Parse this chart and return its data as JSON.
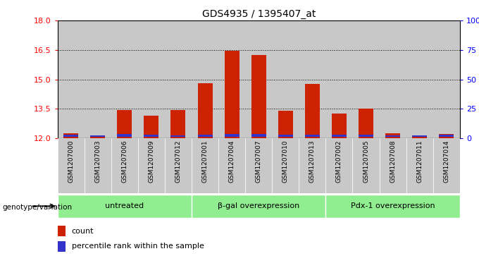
{
  "title": "GDS4935 / 1395407_at",
  "samples": [
    "GSM1207000",
    "GSM1207003",
    "GSM1207006",
    "GSM1207009",
    "GSM1207012",
    "GSM1207001",
    "GSM1207004",
    "GSM1207007",
    "GSM1207010",
    "GSM1207013",
    "GSM1207002",
    "GSM1207005",
    "GSM1207008",
    "GSM1207011",
    "GSM1207014"
  ],
  "red_values": [
    12.25,
    12.15,
    13.45,
    13.15,
    13.45,
    14.8,
    16.45,
    16.25,
    13.4,
    14.75,
    13.25,
    13.5,
    12.25,
    12.1,
    12.2
  ],
  "blue_values": [
    0.12,
    0.1,
    0.14,
    0.13,
    0.1,
    0.13,
    0.14,
    0.14,
    0.12,
    0.12,
    0.12,
    0.12,
    0.1,
    0.1,
    0.11
  ],
  "ymin": 12,
  "ymax": 18,
  "yticks_left": [
    12,
    13.5,
    15,
    16.5,
    18
  ],
  "yticks_right": [
    0,
    25,
    50,
    75,
    100
  ],
  "groups": [
    {
      "label": "untreated",
      "start": 0,
      "end": 5
    },
    {
      "label": "β-gal overexpression",
      "start": 5,
      "end": 10
    },
    {
      "label": "Pdx-1 overexpression",
      "start": 10,
      "end": 15
    }
  ],
  "group_color": "#90EE90",
  "bar_width": 0.55,
  "bar_color_red": "#CC2200",
  "bar_color_blue": "#3333CC",
  "col_bg_color": "#C8C8C8",
  "plot_bg_color": "#FFFFFF",
  "genotype_label": "genotype/variation",
  "legend_count": "count",
  "legend_percentile": "percentile rank within the sample"
}
